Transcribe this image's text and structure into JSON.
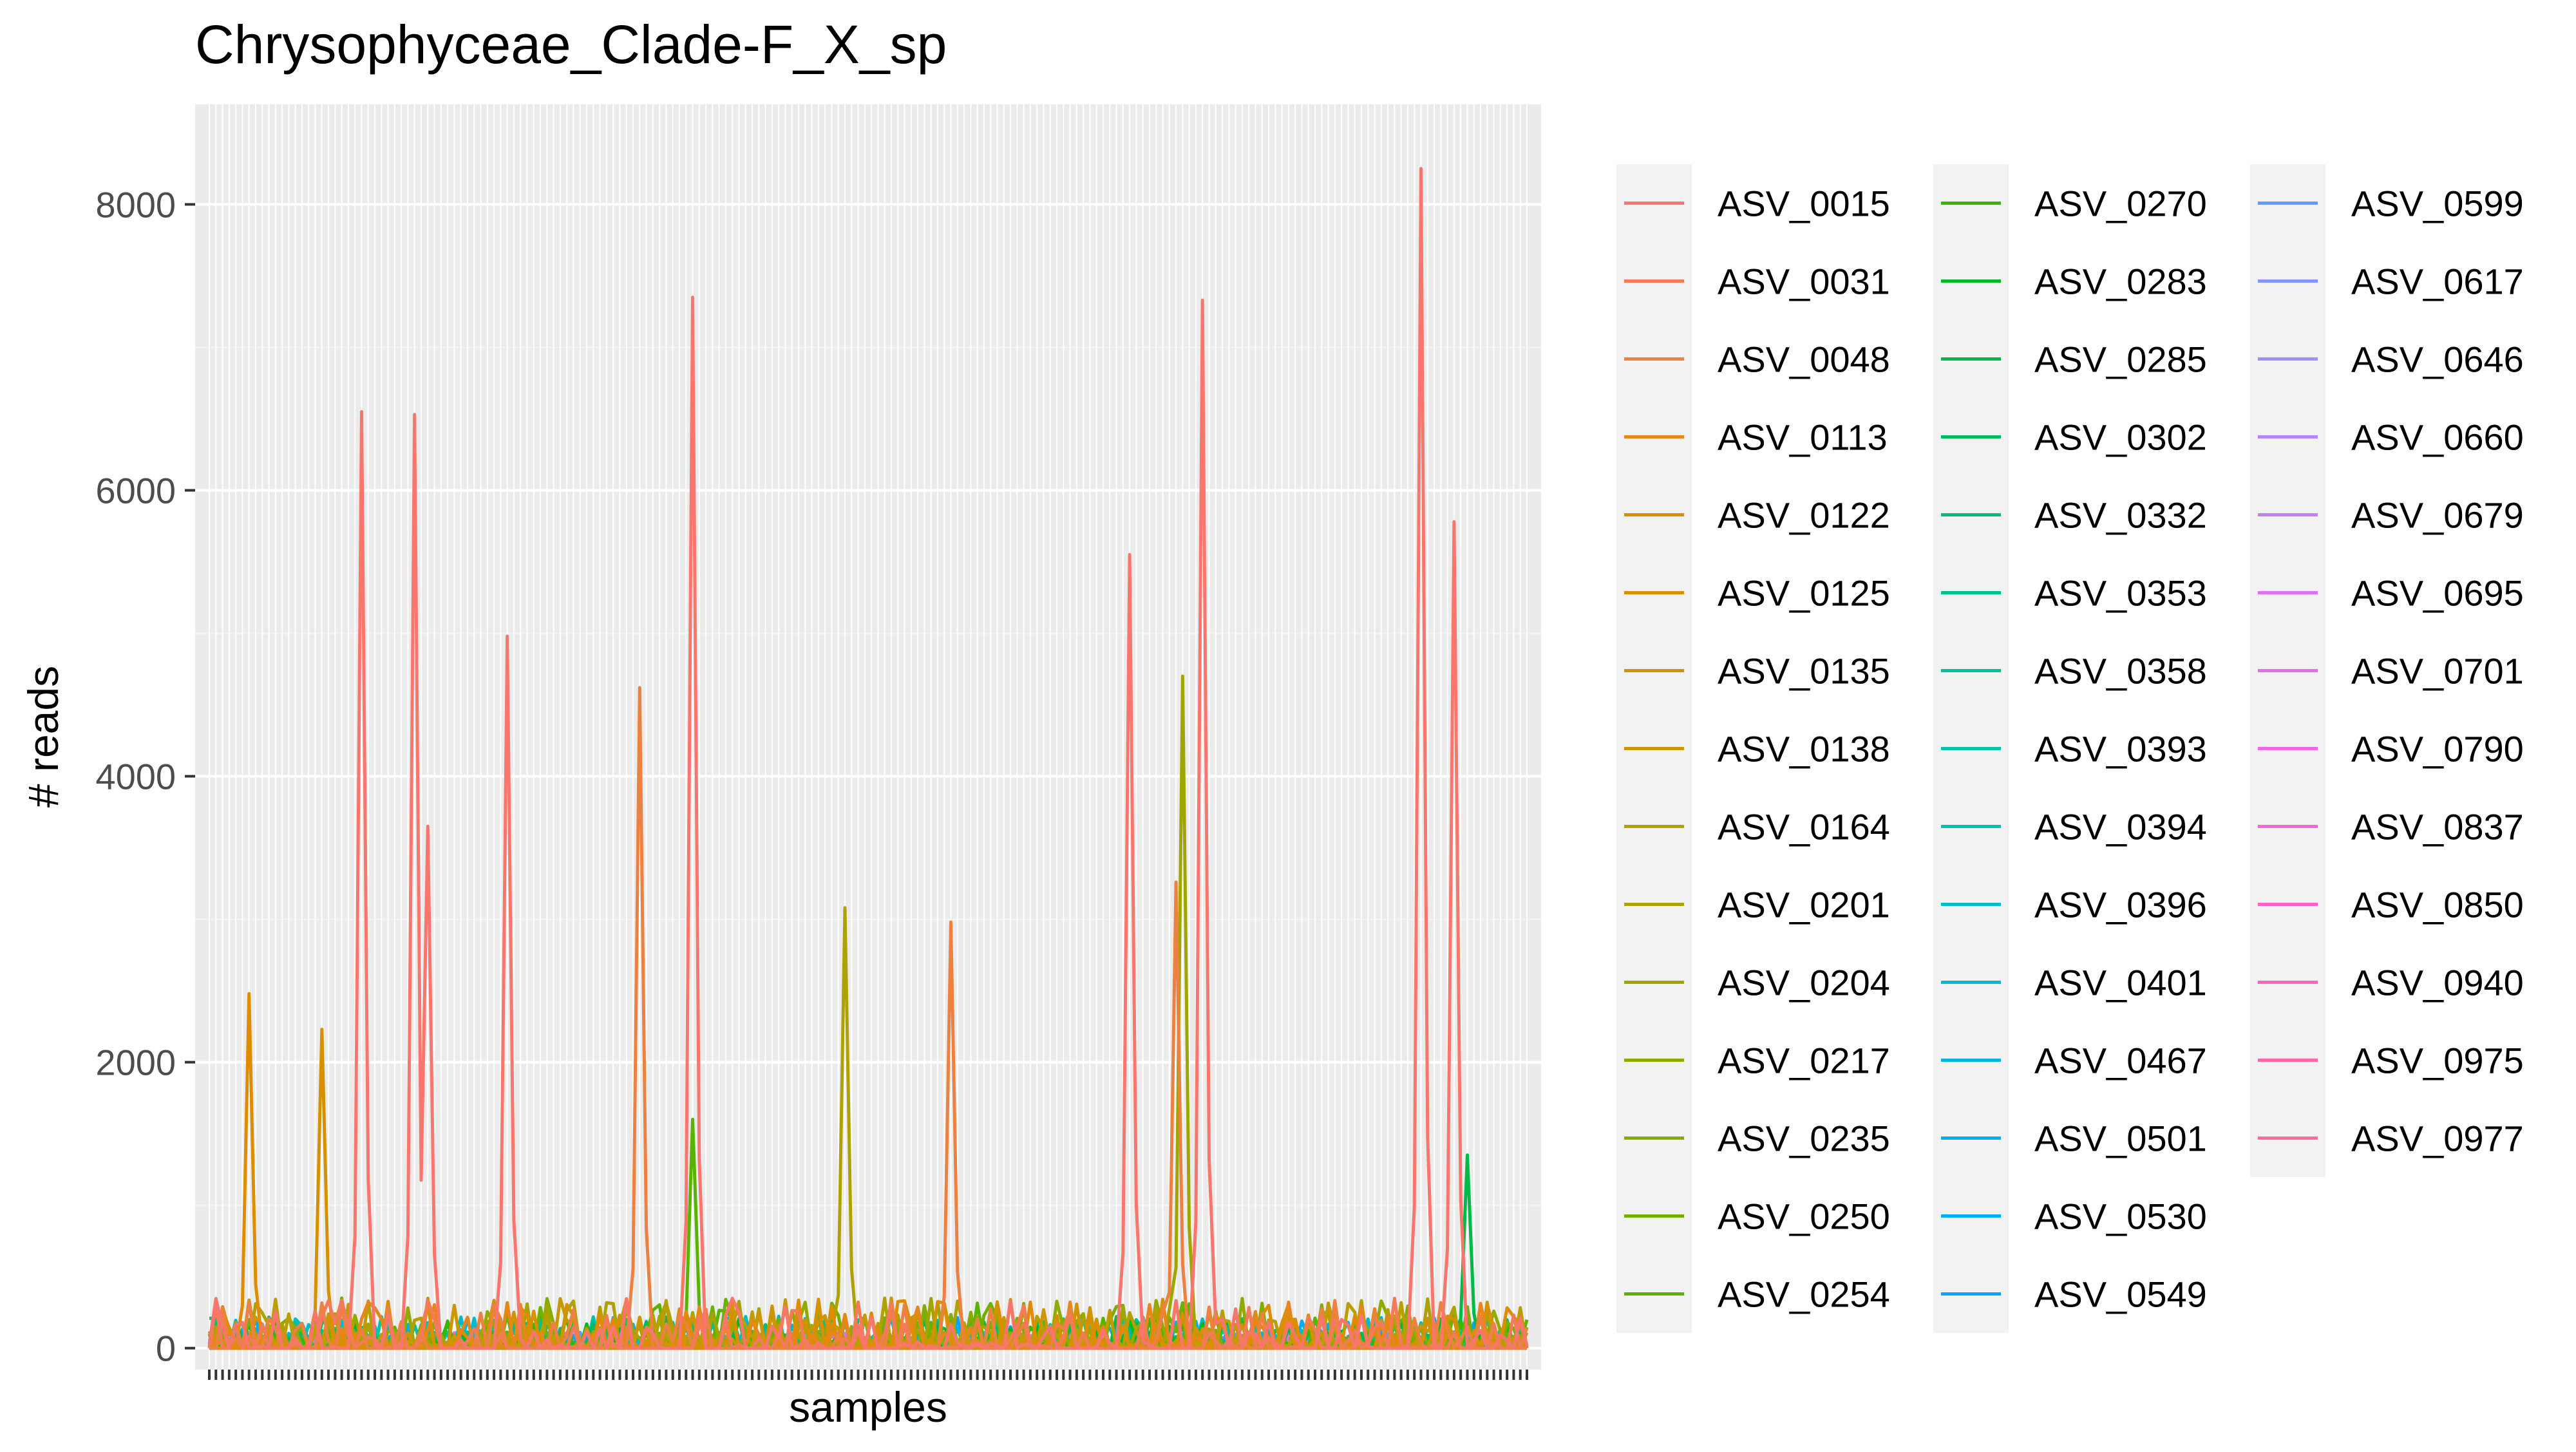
{
  "chart_data": {
    "type": "line",
    "title": "Chrysophyceae_Clade-F_X_sp",
    "xlabel": "samples",
    "ylabel": "# reads",
    "ylim": [
      -150,
      8700
    ],
    "yticks": [
      0,
      2000,
      4000,
      6000,
      8000
    ],
    "grid": true,
    "legend_position": "right",
    "sample_count": 200,
    "legend_entries": [
      "ASV_0015",
      "ASV_0031",
      "ASV_0048",
      "ASV_0113",
      "ASV_0122",
      "ASV_0125",
      "ASV_0135",
      "ASV_0138",
      "ASV_0164",
      "ASV_0201",
      "ASV_0204",
      "ASV_0217",
      "ASV_0235",
      "ASV_0250",
      "ASV_0254",
      "ASV_0270",
      "ASV_0283",
      "ASV_0285",
      "ASV_0302",
      "ASV_0332",
      "ASV_0353",
      "ASV_0358",
      "ASV_0393",
      "ASV_0394",
      "ASV_0396",
      "ASV_0401",
      "ASV_0467",
      "ASV_0501",
      "ASV_0530",
      "ASV_0549",
      "ASV_0599",
      "ASV_0617",
      "ASV_0646",
      "ASV_0660",
      "ASV_0679",
      "ASV_0695",
      "ASV_0701",
      "ASV_0790",
      "ASV_0837",
      "ASV_0850",
      "ASV_0940",
      "ASV_0975",
      "ASV_0977"
    ],
    "colors": [
      "#F8766D",
      "#F37B59",
      "#ED8141",
      "#E7861B",
      "#DF8C00",
      "#D79000",
      "#CE9500",
      "#C49A00",
      "#B99E00",
      "#ADA200",
      "#A0A600",
      "#92AA00",
      "#82AD00",
      "#6FB000",
      "#58B400",
      "#3AB600",
      "#00B81F",
      "#00BA48",
      "#00BC61",
      "#00BD76",
      "#00BF88",
      "#00C099",
      "#00C1AA",
      "#00C0B9",
      "#00BDC7",
      "#00BAD4",
      "#00B6E1",
      "#00B1EC",
      "#00ACF6",
      "#00A5FF",
      "#5D9DFF",
      "#8595FF",
      "#A38CFF",
      "#B983FF",
      "#CB7AFF",
      "#DA71F8",
      "#E66BEF",
      "#F066E5",
      "#F765D8",
      "#FC64CA",
      "#FF64BB",
      "#FF67AA",
      "#FF6C99"
    ],
    "peaks": [
      {
        "series": "ASV_0015",
        "sample": 23,
        "value": 6550
      },
      {
        "series": "ASV_0015",
        "sample": 31,
        "value": 6530
      },
      {
        "series": "ASV_0015",
        "sample": 33,
        "value": 3650
      },
      {
        "series": "ASV_0015",
        "sample": 45,
        "value": 4980
      },
      {
        "series": "ASV_0015",
        "sample": 73,
        "value": 7350
      },
      {
        "series": "ASV_0015",
        "sample": 139,
        "value": 5550
      },
      {
        "series": "ASV_0015",
        "sample": 150,
        "value": 7330
      },
      {
        "series": "ASV_0015",
        "sample": 183,
        "value": 8250
      },
      {
        "series": "ASV_0015",
        "sample": 188,
        "value": 5780
      },
      {
        "series": "ASV_0048",
        "sample": 65,
        "value": 4620
      },
      {
        "series": "ASV_0048",
        "sample": 112,
        "value": 2980
      },
      {
        "series": "ASV_0048",
        "sample": 146,
        "value": 3260
      },
      {
        "series": "ASV_0122",
        "sample": 6,
        "value": 2480
      },
      {
        "series": "ASV_0125",
        "sample": 17,
        "value": 2230
      },
      {
        "series": "ASV_0201",
        "sample": 96,
        "value": 3080
      },
      {
        "series": "ASV_0204",
        "sample": 147,
        "value": 4700
      },
      {
        "series": "ASV_0254",
        "sample": 73,
        "value": 1600
      },
      {
        "series": "ASV_0285",
        "sample": 190,
        "value": 1350
      }
    ]
  }
}
